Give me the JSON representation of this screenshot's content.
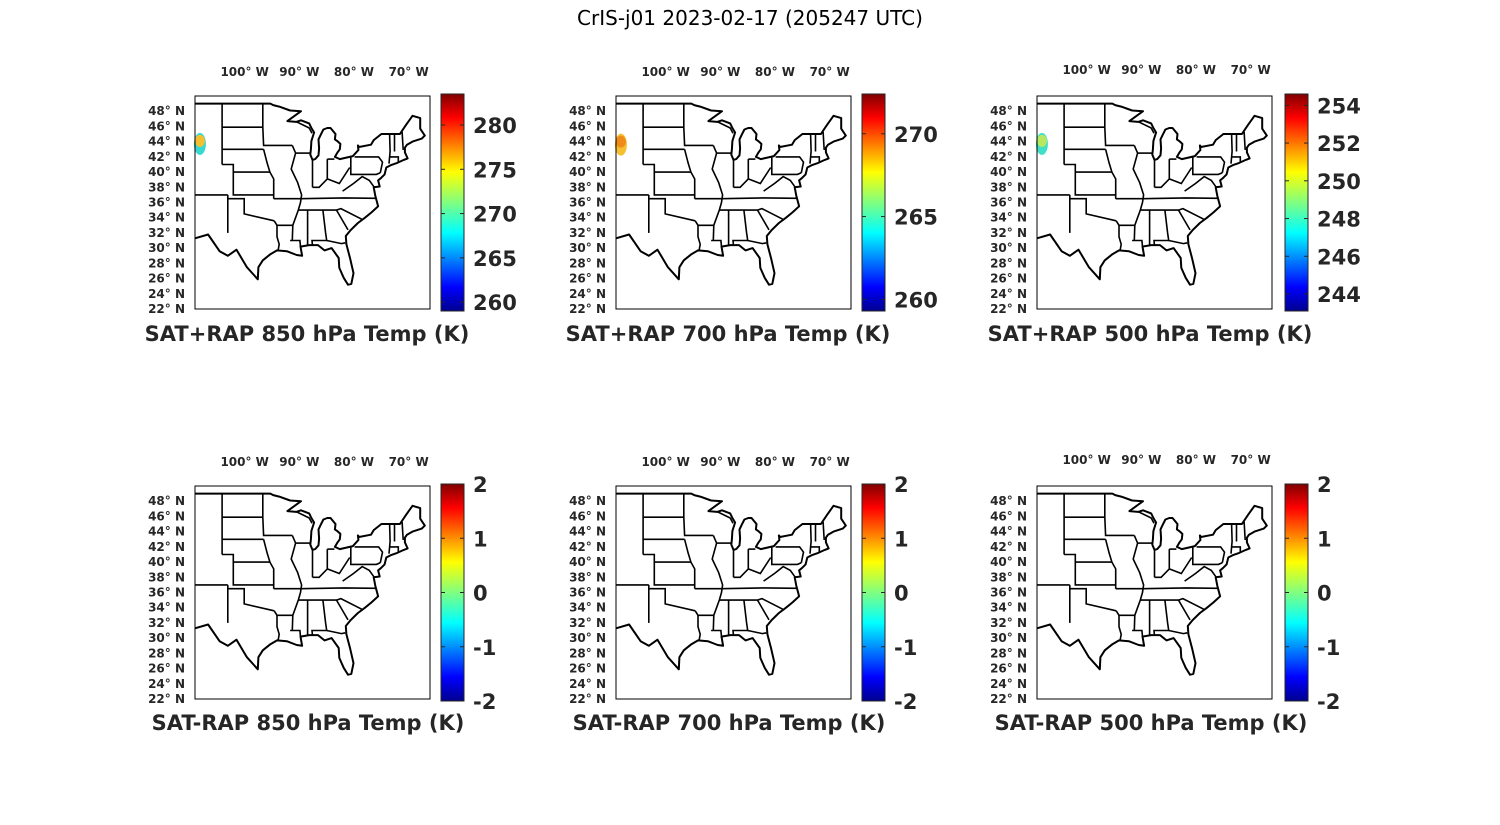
{
  "title": "CrIS-j01 2023-02-17 (205247 UTC)",
  "lon_ticks": [
    "100° W",
    "90° W",
    "80° W",
    "70° W"
  ],
  "lat_ticks": [
    "48° N",
    "46° N",
    "44° N",
    "42° N",
    "40° N",
    "38° N",
    "36° N",
    "34° N",
    "32° N",
    "30° N",
    "28° N",
    "26° N",
    "24° N",
    "22° N"
  ],
  "colormap": "jet",
  "panels": [
    {
      "title": "SAT+RAP 850 hPa Temp (K)",
      "colorbar_ticks": [
        "280",
        "275",
        "270",
        "265",
        "260"
      ],
      "clim": [
        259,
        283.5
      ],
      "blob": {
        "lon": -108.1,
        "lat": 43.7,
        "core": "#f5c030",
        "edge": "#38d8d0"
      }
    },
    {
      "title": "SAT+RAP 700 hPa Temp (K)",
      "colorbar_ticks": [
        "270",
        "265",
        "260"
      ],
      "clim": [
        259.3,
        272.4
      ],
      "blob": {
        "lon": -108.1,
        "lat": 43.6,
        "core": "#f08a18",
        "edge": "#f5c030"
      }
    },
    {
      "title": "SAT+RAP 500 hPa Temp (K)",
      "colorbar_ticks": [
        "254",
        "252",
        "250",
        "248",
        "246",
        "244"
      ],
      "clim": [
        243.1,
        254.6
      ],
      "blob": {
        "lon": -108.1,
        "lat": 43.7,
        "core": "#b8e860",
        "edge": "#40e0c8"
      }
    },
    {
      "title": "SAT-RAP 850 hPa Temp (K)",
      "colorbar_ticks": [
        "2",
        "1",
        "0",
        "-1",
        "-2"
      ],
      "clim": [
        -2,
        2
      ]
    },
    {
      "title": "SAT-RAP 700 hPa Temp (K)",
      "colorbar_ticks": [
        "2",
        "1",
        "0",
        "-1",
        "-2"
      ],
      "clim": [
        -2,
        2
      ]
    },
    {
      "title": "SAT-RAP 500 hPa Temp (K)",
      "colorbar_ticks": [
        "2",
        "1",
        "0",
        "-1",
        "-2"
      ],
      "clim": [
        -2,
        2
      ]
    }
  ]
}
